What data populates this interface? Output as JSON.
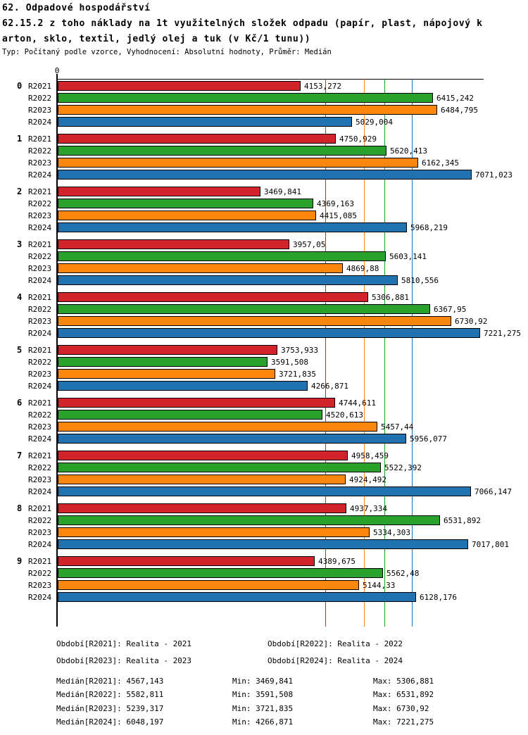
{
  "header": {
    "title_line1": "62. Odpadové hospodářství",
    "title_line2": "62.15.2 z toho náklady na 1t využitelných složek odpadu (papír, plast, nápojový k",
    "title_line3": "arton, sklo, textil, jedlý olej a tuk (v Kč/1 tunu))",
    "meta": "Typ: Počítaný podle vzorce, Vyhodnocení: Absolutní hodnoty, Průměr: Medián"
  },
  "chart_data": {
    "type": "bar",
    "orientation": "horizontal",
    "axis": {
      "origin_label": "0",
      "xmin": 0,
      "xmax": 7280,
      "grid": "median-reference-lines-only"
    },
    "legend_position": "bottom",
    "categories": [
      "0",
      "1",
      "2",
      "3",
      "4",
      "5",
      "6",
      "7",
      "8",
      "9"
    ],
    "series_labels": [
      "R2021",
      "R2022",
      "R2023",
      "R2024"
    ],
    "series_colors": {
      "R2021": "#d2232a",
      "R2022": "#2aa12b",
      "R2023": "#fd860f",
      "R2024": "#2172b0"
    },
    "groups": [
      {
        "category": "0",
        "bars": [
          {
            "series": "R2021",
            "value": 4153.272,
            "label": "4153,272"
          },
          {
            "series": "R2022",
            "value": 6415.242,
            "label": "6415,242"
          },
          {
            "series": "R2023",
            "value": 6484.795,
            "label": "6484,795"
          },
          {
            "series": "R2024",
            "value": 5029.004,
            "label": "5029,004"
          }
        ]
      },
      {
        "category": "1",
        "bars": [
          {
            "series": "R2021",
            "value": 4750.929,
            "label": "4750,929"
          },
          {
            "series": "R2022",
            "value": 5620.413,
            "label": "5620,413"
          },
          {
            "series": "R2023",
            "value": 6162.345,
            "label": "6162,345"
          },
          {
            "series": "R2024",
            "value": 7071.023,
            "label": "7071,023"
          }
        ]
      },
      {
        "category": "2",
        "bars": [
          {
            "series": "R2021",
            "value": 3469.841,
            "label": "3469,841"
          },
          {
            "series": "R2022",
            "value": 4369.163,
            "label": "4369,163"
          },
          {
            "series": "R2023",
            "value": 4415.085,
            "label": "4415,085"
          },
          {
            "series": "R2024",
            "value": 5968.219,
            "label": "5968,219"
          }
        ]
      },
      {
        "category": "3",
        "bars": [
          {
            "series": "R2021",
            "value": 3957.05,
            "label": "3957,05"
          },
          {
            "series": "R2022",
            "value": 5603.141,
            "label": "5603,141"
          },
          {
            "series": "R2023",
            "value": 4869.88,
            "label": "4869,88"
          },
          {
            "series": "R2024",
            "value": 5810.556,
            "label": "5810,556"
          }
        ]
      },
      {
        "category": "4",
        "bars": [
          {
            "series": "R2021",
            "value": 5306.881,
            "label": "5306,881"
          },
          {
            "series": "R2022",
            "value": 6367.95,
            "label": "6367,95"
          },
          {
            "series": "R2023",
            "value": 6730.92,
            "label": "6730,92"
          },
          {
            "series": "R2024",
            "value": 7221.275,
            "label": "7221,275"
          }
        ]
      },
      {
        "category": "5",
        "bars": [
          {
            "series": "R2021",
            "value": 3753.933,
            "label": "3753,933"
          },
          {
            "series": "R2022",
            "value": 3591.508,
            "label": "3591,508"
          },
          {
            "series": "R2023",
            "value": 3721.835,
            "label": "3721,835"
          },
          {
            "series": "R2024",
            "value": 4266.871,
            "label": "4266,871"
          }
        ]
      },
      {
        "category": "6",
        "bars": [
          {
            "series": "R2021",
            "value": 4744.611,
            "label": "4744,611"
          },
          {
            "series": "R2022",
            "value": 4520.613,
            "label": "4520,613"
          },
          {
            "series": "R2023",
            "value": 5457.44,
            "label": "5457,44"
          },
          {
            "series": "R2024",
            "value": 5956.077,
            "label": "5956,077"
          }
        ]
      },
      {
        "category": "7",
        "bars": [
          {
            "series": "R2021",
            "value": 4958.459,
            "label": "4958,459"
          },
          {
            "series": "R2022",
            "value": 5522.392,
            "label": "5522,392"
          },
          {
            "series": "R2023",
            "value": 4924.492,
            "label": "4924,492"
          },
          {
            "series": "R2024",
            "value": 7066.147,
            "label": "7066,147"
          }
        ]
      },
      {
        "category": "8",
        "bars": [
          {
            "series": "R2021",
            "value": 4937.334,
            "label": "4937,334"
          },
          {
            "series": "R2022",
            "value": 6531.892,
            "label": "6531,892"
          },
          {
            "series": "R2023",
            "value": 5334.303,
            "label": "5334,303"
          },
          {
            "series": "R2024",
            "value": 7017.801,
            "label": "7017,801"
          }
        ]
      },
      {
        "category": "9",
        "bars": [
          {
            "series": "R2021",
            "value": 4389.675,
            "label": "4389,675"
          },
          {
            "series": "R2022",
            "value": 5562.48,
            "label": "5562,48"
          },
          {
            "series": "R2023",
            "value": 5144.33,
            "label": "5144,33"
          },
          {
            "series": "R2024",
            "value": 6128.176,
            "label": "6128,176"
          }
        ]
      }
    ],
    "median_lines": [
      {
        "series": "R2021",
        "value": 4567.143,
        "color": "#d2232a"
      },
      {
        "series": "R2022",
        "value": 5582.811,
        "color": "#2aa12b"
      },
      {
        "series": "R2023",
        "value": 5239.317,
        "color": "#fd860f"
      },
      {
        "series": "R2024",
        "value": 6048.197,
        "color": "#2172b0"
      }
    ]
  },
  "legend": {
    "items": [
      {
        "label": "Období[R2021]: Realita - 2021"
      },
      {
        "label": "Období[R2022]: Realita - 2022"
      },
      {
        "label": "Období[R2023]: Realita - 2023"
      },
      {
        "label": "Období[R2024]: Realita - 2024"
      }
    ]
  },
  "stats": {
    "rows": [
      {
        "median": "Medián[R2021]: 4567,143",
        "min": "Min: 3469,841",
        "max": "Max: 5306,881"
      },
      {
        "median": "Medián[R2022]: 5582,811",
        "min": "Min: 3591,508",
        "max": "Max: 6531,892"
      },
      {
        "median": "Medián[R2023]: 5239,317",
        "min": "Min: 3721,835",
        "max": "Max: 6730,92"
      },
      {
        "median": "Medián[R2024]: 6048,197",
        "min": "Min: 4266,871",
        "max": "Max: 7221,275"
      }
    ]
  }
}
